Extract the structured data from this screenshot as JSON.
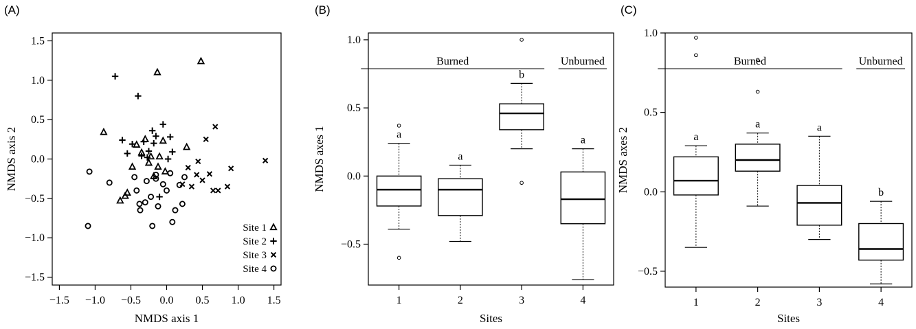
{
  "chart_data": [
    {
      "panel": "(A)",
      "type": "scatter",
      "xlabel": "NMDS axis 1",
      "ylabel": "NMDS axis 2",
      "xlim": [
        -1.6,
        1.6
      ],
      "ylim": [
        -1.6,
        1.6
      ],
      "xticks": [
        -1.5,
        -1.0,
        -0.5,
        0.0,
        0.5,
        1.0,
        1.5
      ],
      "yticks": [
        -1.5,
        -1.0,
        -0.5,
        0.0,
        0.5,
        1.0,
        1.5
      ],
      "xtick_labels": [
        "−1.5",
        "−1.0",
        "−0.5",
        "0.0",
        "0.5",
        "1.0",
        "1.5"
      ],
      "ytick_labels": [
        "−1.5",
        "−1.0",
        "−0.5",
        "0.0",
        "0.5",
        "1.0",
        "1.5"
      ],
      "legend_position": "bottom-right",
      "series": [
        {
          "name": "Site 1",
          "marker": "triangle",
          "legend_symbol": "△",
          "x": [
            -0.13,
            0.48,
            -0.88,
            -0.3,
            -0.42,
            -0.55,
            -0.35,
            -0.22,
            -0.05,
            0.28,
            -0.12,
            -0.18,
            -0.65,
            -0.02,
            -0.58,
            -0.48,
            -0.1,
            -0.25
          ],
          "y": [
            1.1,
            1.24,
            0.34,
            0.25,
            0.18,
            -0.43,
            0.08,
            0.03,
            0.23,
            0.15,
            -0.1,
            -0.22,
            -0.53,
            -0.16,
            -0.47,
            -0.1,
            0.03,
            -0.05
          ]
        },
        {
          "name": "Site 2",
          "marker": "plus",
          "legend_symbol": "+",
          "x": [
            -0.72,
            -0.4,
            -0.62,
            -0.48,
            -0.32,
            -0.2,
            -0.15,
            -0.05,
            0.05,
            -0.25,
            0.08,
            -0.35,
            -0.55,
            -0.1,
            -0.18,
            0.02,
            -0.27
          ],
          "y": [
            1.05,
            0.8,
            0.24,
            0.19,
            0.22,
            0.36,
            0.29,
            0.44,
            0.28,
            0.1,
            0.09,
            0.04,
            0.07,
            -0.48,
            0.2,
            0.0,
            0.02
          ]
        },
        {
          "name": "Site 3",
          "marker": "x",
          "legend_symbol": "×",
          "x": [
            0.68,
            0.55,
            1.38,
            0.44,
            0.9,
            0.3,
            0.6,
            0.72,
            0.42,
            0.22,
            0.35,
            0.5,
            0.65,
            0.85
          ],
          "y": [
            0.41,
            0.25,
            -0.02,
            -0.03,
            -0.12,
            -0.11,
            -0.19,
            -0.4,
            -0.2,
            -0.32,
            -0.35,
            -0.27,
            -0.4,
            -0.35
          ]
        },
        {
          "name": "Site 4",
          "marker": "circle",
          "legend_symbol": "∘",
          "x": [
            -1.08,
            -1.1,
            -0.8,
            -0.45,
            -0.38,
            -0.28,
            -0.2,
            -0.12,
            -0.15,
            -0.42,
            -0.37,
            -0.22,
            -0.15,
            0.0,
            0.18,
            0.12,
            0.22,
            0.25,
            0.08,
            -0.05,
            0.05,
            -0.3
          ],
          "y": [
            -0.16,
            -0.85,
            -0.3,
            -0.23,
            -0.57,
            -0.28,
            -0.85,
            -0.6,
            -0.2,
            -0.4,
            -0.65,
            -0.48,
            -0.25,
            -0.4,
            -0.33,
            -0.65,
            -0.57,
            -0.23,
            -0.8,
            -0.32,
            -0.18,
            -0.55
          ]
        }
      ]
    },
    {
      "panel": "(B)",
      "type": "box",
      "xlabel": "Sites",
      "ylabel": "NMDS axes 1",
      "categories": [
        "1",
        "2",
        "3",
        "4"
      ],
      "ylim": [
        -0.8,
        1.05
      ],
      "yticks": [
        -0.5,
        0.0,
        0.5,
        1.0
      ],
      "ytick_labels": [
        "−0.5",
        "0.0",
        "0.5",
        "1.0"
      ],
      "groups": [
        {
          "label": "Burned",
          "from": 1,
          "to": 3
        },
        {
          "label": "Unburned",
          "from": 4,
          "to": 4
        }
      ],
      "boxes": [
        {
          "site": "1",
          "whisker_low": -0.39,
          "q1": -0.22,
          "median": -0.1,
          "q3": 0.0,
          "whisker_high": 0.24,
          "outliers": [
            0.37,
            -0.6
          ],
          "letter": "a"
        },
        {
          "site": "2",
          "whisker_low": -0.48,
          "q1": -0.29,
          "median": -0.1,
          "q3": -0.02,
          "whisker_high": 0.08,
          "outliers": [],
          "letter": "a"
        },
        {
          "site": "3",
          "whisker_low": 0.2,
          "q1": 0.34,
          "median": 0.46,
          "q3": 0.53,
          "whisker_high": 0.68,
          "outliers": [
            1.0,
            -0.05
          ],
          "letter": "b"
        },
        {
          "site": "4",
          "whisker_low": -0.76,
          "q1": -0.35,
          "median": -0.17,
          "q3": 0.03,
          "whisker_high": 0.2,
          "outliers": [],
          "letter": "a"
        }
      ]
    },
    {
      "panel": "(C)",
      "type": "box",
      "xlabel": "Sites",
      "ylabel": "NMDS axes 2",
      "categories": [
        "1",
        "2",
        "3",
        "4"
      ],
      "ylim": [
        -0.6,
        1.0
      ],
      "yticks": [
        -0.5,
        0.0,
        0.5,
        1.0
      ],
      "ytick_labels": [
        "−0.5",
        "0.0",
        "0.5",
        "1.0"
      ],
      "groups": [
        {
          "label": "Burned",
          "from": 1,
          "to": 3
        },
        {
          "label": "Unburned",
          "from": 4,
          "to": 4
        }
      ],
      "boxes": [
        {
          "site": "1",
          "whisker_low": -0.35,
          "q1": -0.02,
          "median": 0.07,
          "q3": 0.22,
          "whisker_high": 0.29,
          "outliers": [
            0.97,
            0.86
          ],
          "letter": "a"
        },
        {
          "site": "2",
          "whisker_low": -0.09,
          "q1": 0.13,
          "median": 0.2,
          "q3": 0.3,
          "whisker_high": 0.37,
          "outliers": [
            0.83,
            0.63
          ],
          "letter": "a"
        },
        {
          "site": "3",
          "whisker_low": -0.3,
          "q1": -0.21,
          "median": -0.07,
          "q3": 0.04,
          "whisker_high": 0.35,
          "outliers": [],
          "letter": "a"
        },
        {
          "site": "4",
          "whisker_low": -0.58,
          "q1": -0.43,
          "median": -0.36,
          "q3": -0.2,
          "whisker_high": -0.06,
          "outliers": [],
          "letter": "b"
        }
      ]
    }
  ]
}
